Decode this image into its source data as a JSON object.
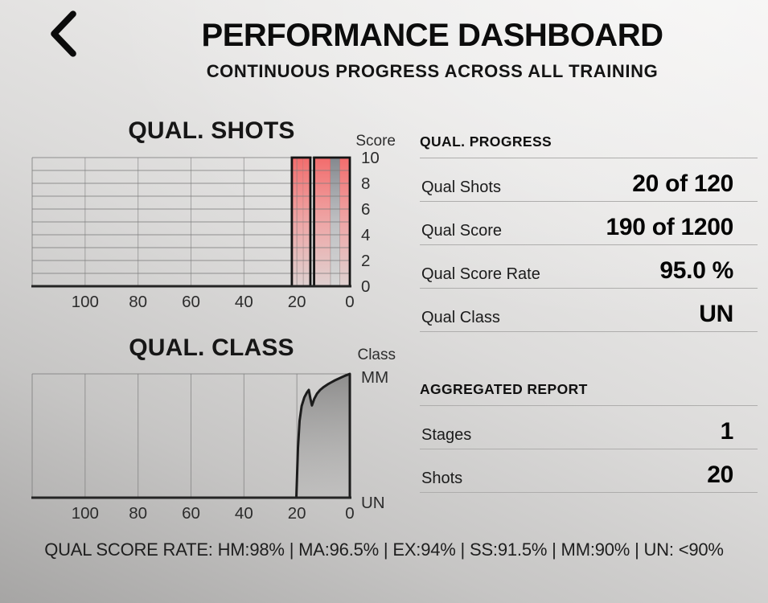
{
  "header": {
    "back_icon": "chevron-left",
    "title": "PERFORMANCE DASHBOARD",
    "subtitle": "CONTINUOUS PROGRESS ACROSS ALL TRAINING"
  },
  "colors": {
    "bar_red_top": "#f26c6c",
    "bar_red_mid": "#f09d9d",
    "bar_gray_top": "#84888e",
    "bar_gray_mid": "#b9babd",
    "group_border": "#141414",
    "line": "#1c1c1c",
    "grid": "#7d7d7d",
    "axis": "#242424",
    "area_fill_top": "rgba(45,45,45,0.42)",
    "area_fill_bottom": "rgba(120,120,120,0.10)"
  },
  "chart_data": [
    {
      "id": "qual-shots",
      "type": "bar",
      "title": "QUAL. SHOTS",
      "y_axis_label": "Score",
      "x_ticks": [
        100,
        80,
        60,
        40,
        20,
        0
      ],
      "y_ticks": [
        10,
        8,
        6,
        4,
        2,
        0
      ],
      "x_range": [
        120,
        0
      ],
      "y_range": [
        0,
        10
      ],
      "grid": "horizontal+vertical",
      "note": "last 20 shots drawn as full-height gradient bars in two black-framed groups, x = shots ago",
      "bar_groups": [
        {
          "x_from": 21.9,
          "x_to": 14.9,
          "y_from": 0,
          "y_to": 10,
          "stripes": [
            {
              "color": "red",
              "frac": 0.62
            },
            {
              "color": "red",
              "frac": 0.38
            }
          ]
        },
        {
          "x_from": 13.5,
          "x_to": 0,
          "y_from": 0,
          "y_to": 10,
          "stripes": [
            {
              "color": "red",
              "frac": 0.46
            },
            {
              "color": "gray",
              "frac": 0.26
            },
            {
              "color": "red",
              "frac": 0.28
            }
          ]
        }
      ]
    },
    {
      "id": "qual-class",
      "type": "area",
      "title": "QUAL. CLASS",
      "y_axis_label": "Class",
      "x_ticks": [
        100,
        80,
        60,
        40,
        20,
        0
      ],
      "y_ticks": [
        "MM",
        "UN"
      ],
      "x_range": [
        120,
        0
      ],
      "y_range": [
        "UN",
        "MM"
      ],
      "grid": "vertical",
      "points": [
        [
          20.2,
          0.0
        ],
        [
          19.6,
          0.4
        ],
        [
          19.0,
          0.62
        ],
        [
          18.2,
          0.74
        ],
        [
          17.2,
          0.81
        ],
        [
          16.2,
          0.85
        ],
        [
          15.5,
          0.87
        ],
        [
          14.9,
          0.8
        ],
        [
          14.3,
          0.745
        ],
        [
          13.4,
          0.8
        ],
        [
          12.4,
          0.84
        ],
        [
          11.2,
          0.87
        ],
        [
          9.8,
          0.895
        ],
        [
          8.4,
          0.915
        ],
        [
          7.0,
          0.932
        ],
        [
          5.6,
          0.948
        ],
        [
          4.2,
          0.962
        ],
        [
          2.8,
          0.975
        ],
        [
          1.4,
          0.988
        ],
        [
          0.0,
          1.0
        ]
      ]
    }
  ],
  "panel": {
    "sections": [
      {
        "title": "QUAL. PROGRESS",
        "rows": [
          {
            "label": "Qual Shots",
            "value": "20 of 120"
          },
          {
            "label": "Qual Score",
            "value": "190 of 1200"
          },
          {
            "label": "Qual Score Rate",
            "value": "95.0 %"
          },
          {
            "label": "Qual Class",
            "value": "UN"
          }
        ]
      },
      {
        "title": "AGGREGATED REPORT",
        "rows": [
          {
            "label": "Stages",
            "value": "1"
          },
          {
            "label": "Shots",
            "value": "20"
          }
        ]
      }
    ]
  },
  "footer": {
    "text": "QUAL SCORE RATE: HM:98% | MA:96.5% | EX:94% | SS:91.5% | MM:90% | UN: <90%"
  }
}
